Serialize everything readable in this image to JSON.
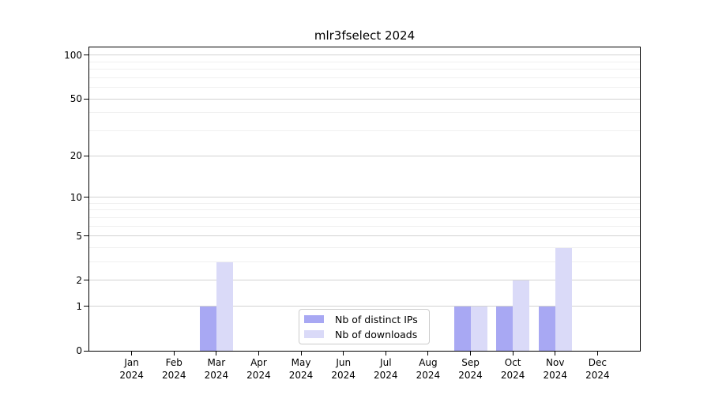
{
  "chart_data": {
    "type": "bar",
    "title": "mlr3fselect 2024",
    "categories": [
      "Jan\n2024",
      "Feb\n2024",
      "Mar\n2024",
      "Apr\n2024",
      "May\n2024",
      "Jun\n2024",
      "Jul\n2024",
      "Aug\n2024",
      "Sep\n2024",
      "Oct\n2024",
      "Nov\n2024",
      "Dec\n2024"
    ],
    "series": [
      {
        "name": "Nb of distinct IPs",
        "color": "#a8a8f3",
        "values": [
          0,
          0,
          1,
          0,
          0,
          0,
          0,
          0,
          1,
          1,
          1,
          0
        ]
      },
      {
        "name": "Nb of downloads",
        "color": "#dadaf8",
        "values": [
          0,
          0,
          3,
          0,
          0,
          0,
          0,
          0,
          1,
          2,
          4,
          0
        ]
      }
    ],
    "yscale": "log1p",
    "ylim": [
      0,
      113
    ],
    "yticks": [
      0,
      1,
      2,
      5,
      10,
      20,
      50,
      100
    ],
    "minor_gridlines": [
      3,
      4,
      6,
      7,
      8,
      9,
      30,
      40,
      60,
      70,
      80,
      90
    ],
    "grid": "on",
    "legend_position": "lower center",
    "colors": {
      "major_grid": "#d2d2d2",
      "minor_grid": "#f0f0f0",
      "axis": "#000000",
      "background": "#ffffff"
    }
  }
}
